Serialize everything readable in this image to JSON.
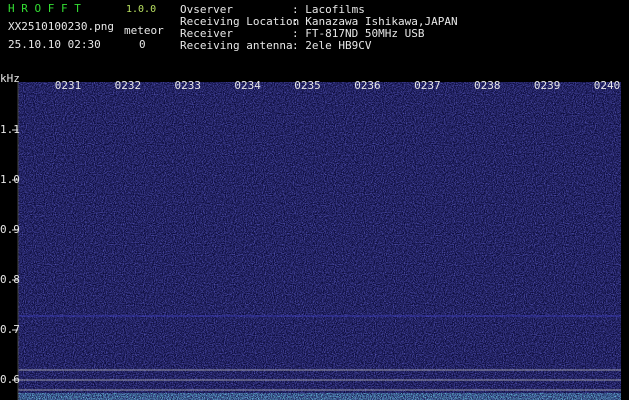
{
  "header": {
    "app_name": "H R O F F T",
    "version": "1.0.0",
    "filename": "XX2510100230.png",
    "datetime": "25.10.10 02:30",
    "counter_label": "meteor",
    "counter_value": 0
  },
  "info": [
    {
      "label": "Ovserver",
      "value": "Lacofilms"
    },
    {
      "label": "Receiving Location",
      "value": "Kanazawa Ishikawa,JAPAN"
    },
    {
      "label": "Receiver",
      "value": "FT-817ND 50MHz USB"
    },
    {
      "label": "Receiving antenna",
      "value": "2ele HB9CV"
    }
  ],
  "spectrogram": {
    "y_unit": "kHz",
    "ylim": [
      0.57,
      1.196
    ],
    "yticks": [
      1.1,
      {
        "value": 1.0,
        "label": "1.0"
      },
      0.9,
      0.8,
      0.7,
      0.6
    ],
    "time_labels": [
      "0231",
      "0232",
      "0233",
      "0234",
      "0235",
      "0236",
      "0237",
      "0238",
      "0239",
      "0240"
    ]
  }
}
